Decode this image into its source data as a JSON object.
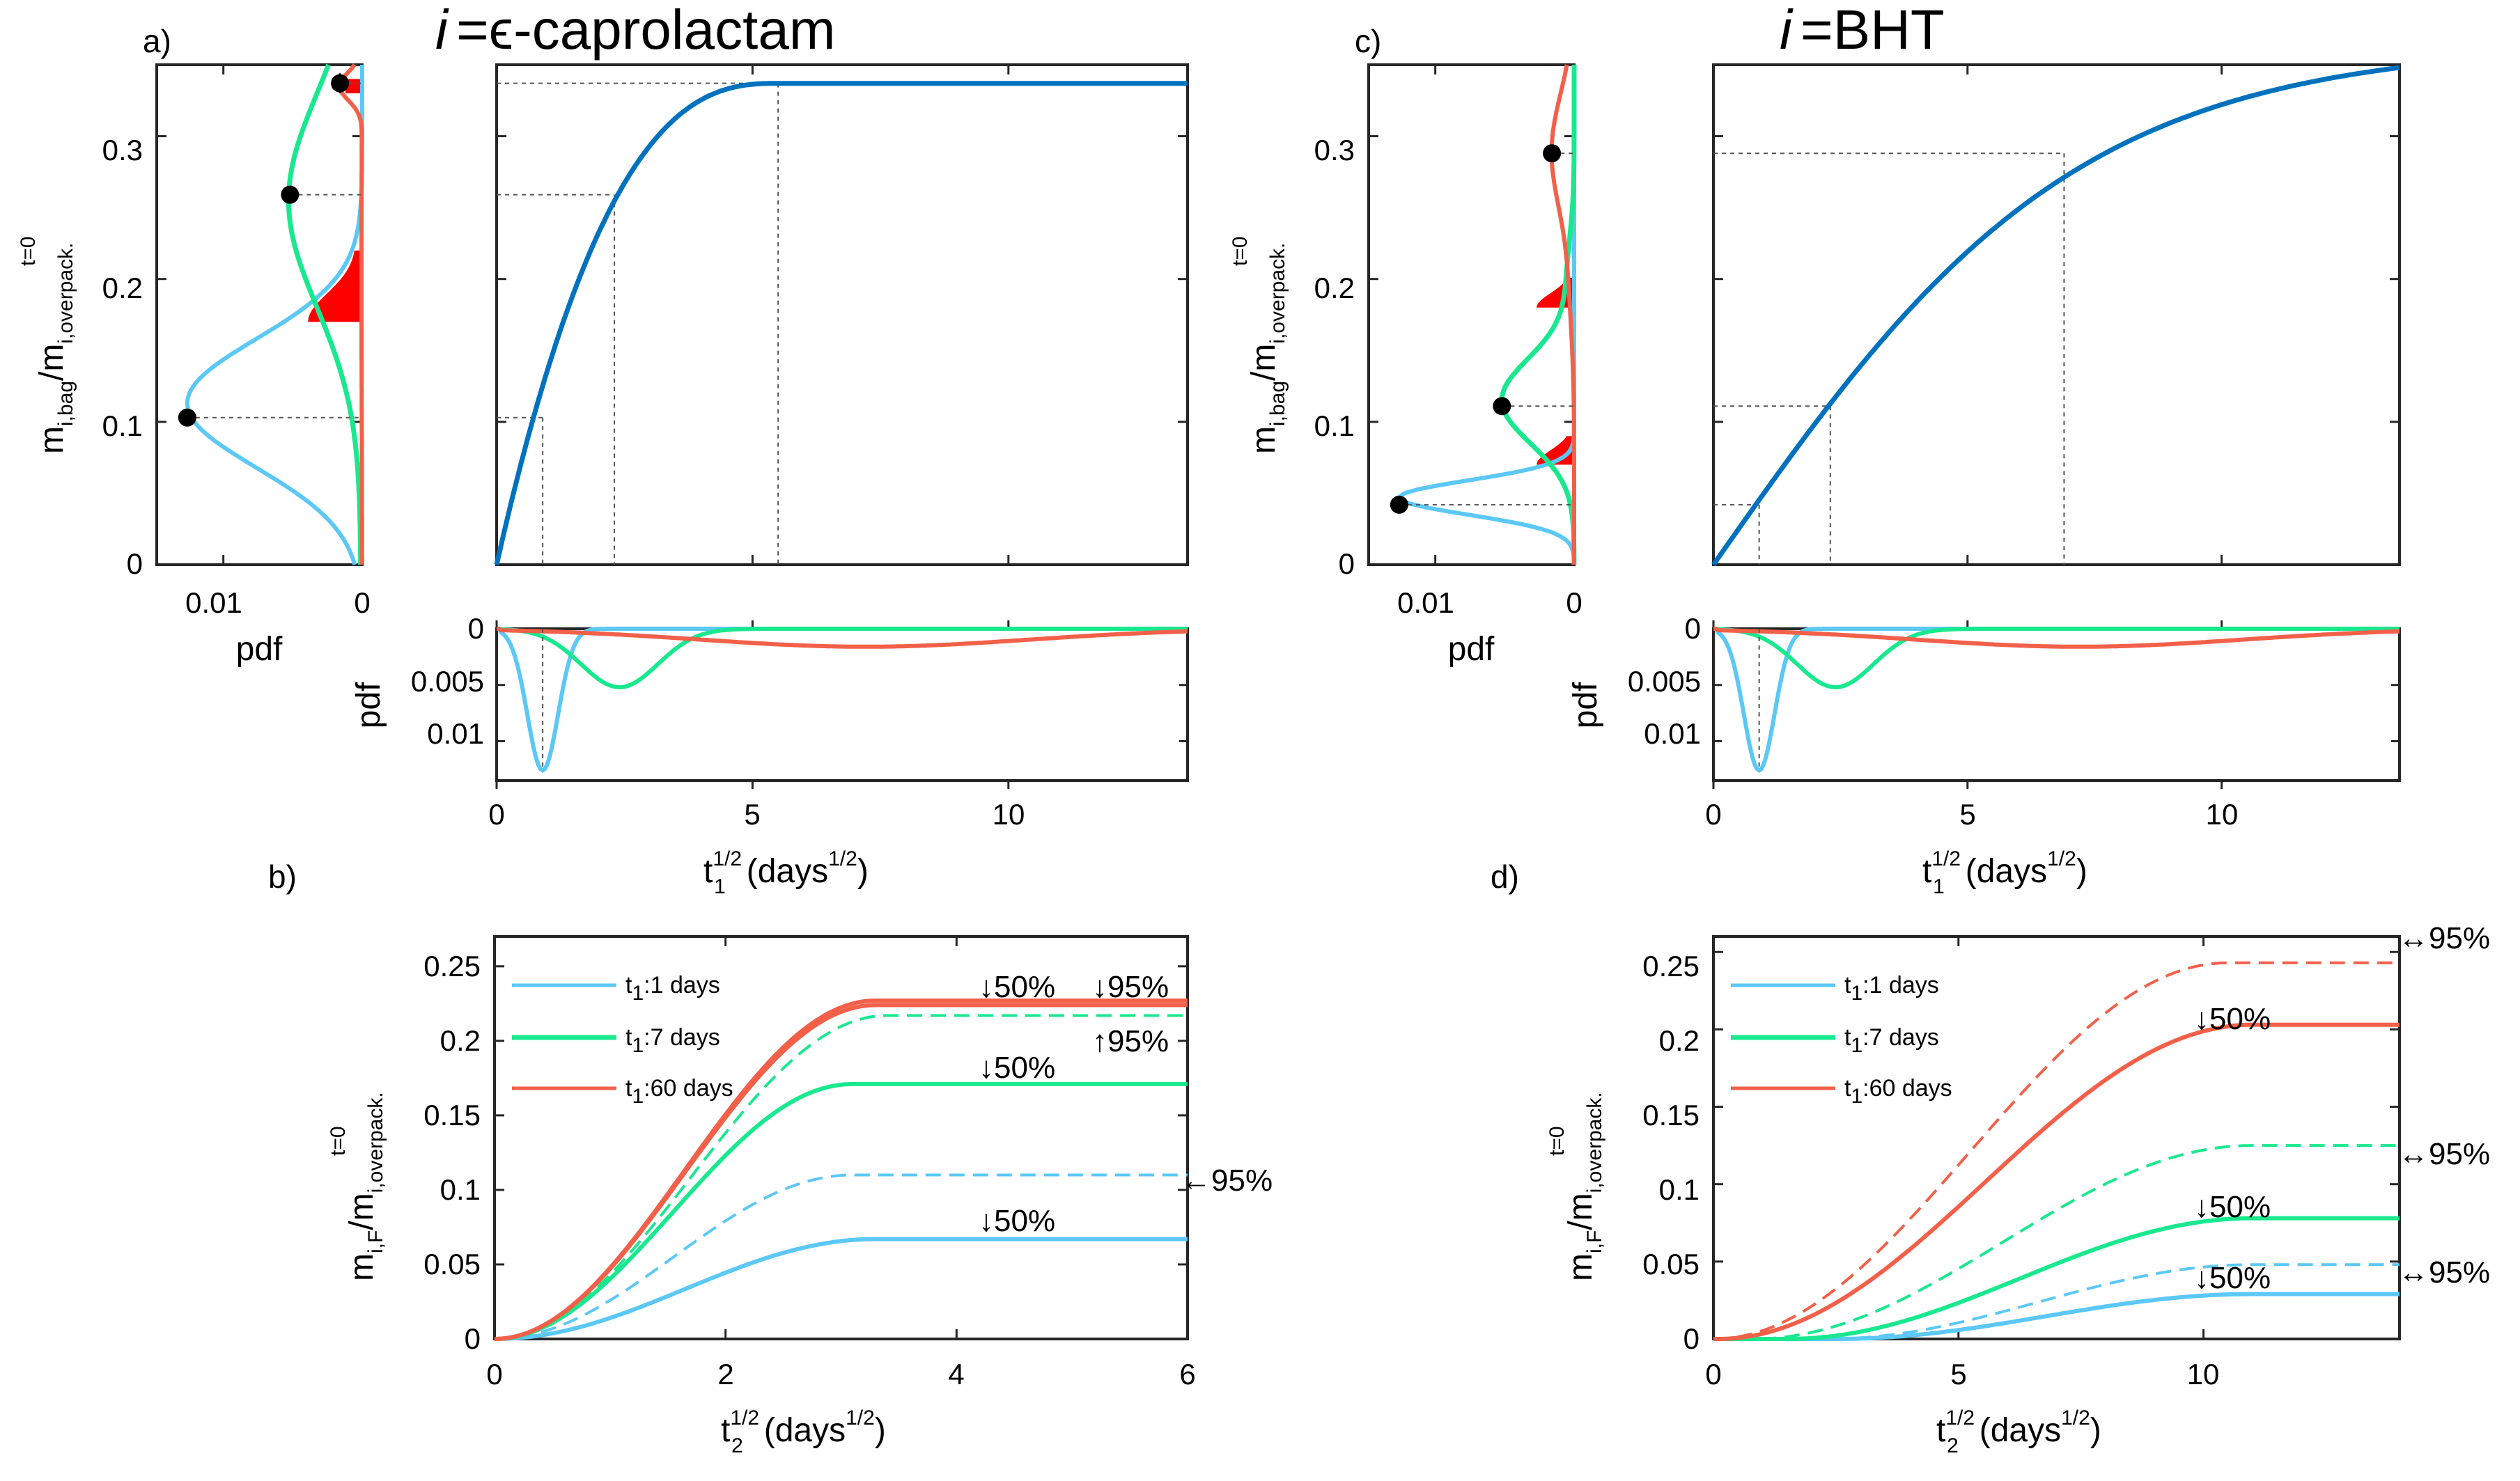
{
  "chart_data": [
    {
      "id": "a_pdf",
      "panel_label": "a)",
      "type": "line",
      "xlabel": "pdf",
      "ylabel": "m_i,bag/m_i,overpack^t=0",
      "xticks": [
        "0.01",
        "0"
      ],
      "yticks": [
        "0",
        "0.1",
        "0.2",
        "0.3"
      ],
      "xlim": [
        0.0148,
        0
      ],
      "ylim": [
        0,
        0.35
      ],
      "series": [
        {
          "name": "t1:1 days",
          "color": "#5bc8f5",
          "peak_pdf": 0.0126,
          "peak_y": 0.11,
          "spread": 0.055,
          "upper_y": 0.17,
          "dot": [
            0.0126,
            0.103
          ]
        },
        {
          "name": "t1:7 days",
          "color": "#19e88f",
          "peak_pdf": 0.0052,
          "peak_y": 0.258,
          "spread": 0.08,
          "dot": [
            0.0052,
            0.259
          ]
        },
        {
          "name": "t1:60 days",
          "color": "#f2604a",
          "peak_pdf": 0.0016,
          "peak_y": 0.335,
          "dot": [
            0.0016,
            0.337
          ]
        }
      ]
    },
    {
      "id": "a_curve",
      "title_prefix": "i",
      "title_rest": "=ϵ-caprolactam",
      "type": "line",
      "ylim": [
        0,
        0.35
      ],
      "xlim": [
        0,
        13.5
      ],
      "color": "#0072bd",
      "saturation": 0.337,
      "sat_x": 5.5,
      "guides": [
        {
          "x": 0.9,
          "y": 0.103
        },
        {
          "x": 2.3,
          "y": 0.259
        },
        {
          "x": 5.5,
          "y": 0.337
        }
      ]
    },
    {
      "id": "a_timepdf",
      "type": "line",
      "xlabel": "t_1^1/2 (days^1/2)",
      "ylabel": "pdf",
      "xticks": [
        "0",
        "5",
        "10"
      ],
      "yticks": [
        "0",
        "0.005",
        "0.01"
      ],
      "xlim": [
        0,
        13.5
      ],
      "ylim": [
        0,
        0.0135
      ],
      "series": [
        {
          "name": "t1:1 days",
          "mu": 0.9,
          "sigma": 0.3,
          "peak": 0.0126
        },
        {
          "name": "t1:7 days",
          "mu": 2.4,
          "sigma": 0.75,
          "peak": 0.0052
        },
        {
          "name": "t1:60 days",
          "mu": 7.2,
          "sigma": 3.2,
          "peak": 0.0016
        }
      ]
    },
    {
      "id": "b_release",
      "panel_label": "b)",
      "type": "line",
      "xlabel": "t_2^1/2 (days^1/2)",
      "ylabel": "m_i,F/m_i,overpack^t=0",
      "xticks": [
        "0",
        "2",
        "4",
        "6"
      ],
      "yticks": [
        "0",
        "0.05",
        "0.1",
        "0.15",
        "0.2",
        "0.25"
      ],
      "xlim": [
        0,
        6
      ],
      "ylim": [
        0,
        0.27
      ],
      "legend": [
        "t1:1 days",
        "t1:7 days",
        "t1:60 days"
      ],
      "series": [
        {
          "name": "t1:1 days 50%",
          "style": "solid",
          "color": "#5bc8f5",
          "final": 0.067,
          "xs": 3.3
        },
        {
          "name": "t1:1 days 95%",
          "style": "dashed",
          "color": "#5bc8f5",
          "final": 0.11,
          "xs": 3.1
        },
        {
          "name": "t1:7 days 50%",
          "style": "solid",
          "color": "#19e88f",
          "final": 0.171,
          "xs": 3.1
        },
        {
          "name": "t1:7 days 95%",
          "style": "dashed",
          "color": "#19e88f",
          "final": 0.217,
          "xs": 3.4
        },
        {
          "name": "t1:60 days 50%",
          "style": "solid",
          "color": "#f2604a",
          "final": 0.224,
          "xs": 3.3
        },
        {
          "name": "t1:60 days 95%",
          "style": "solid",
          "color": "#f2604a",
          "final": 0.227,
          "xs": 3.3
        }
      ],
      "annotations": [
        "↓50%",
        "↓95%",
        "↑95%",
        "↓50%",
        "←95%",
        "↓50%"
      ]
    },
    {
      "id": "c_pdf",
      "panel_label": "c)",
      "type": "line",
      "xlabel": "pdf",
      "ylabel": "m_i,bag/m_i,overpack^t=0",
      "xticks": [
        "0.01",
        "0"
      ],
      "yticks": [
        "0",
        "0.1",
        "0.2",
        "0.3"
      ],
      "xlim": [
        0.0148,
        0
      ],
      "ylim": [
        0,
        0.35
      ],
      "series": [
        {
          "name": "t1:1 days",
          "color": "#5bc8f5",
          "peak_pdf": 0.0126,
          "peak_y": 0.047,
          "dot": [
            0.0126,
            0.042
          ]
        },
        {
          "name": "t1:7 days",
          "color": "#19e88f",
          "peak_pdf": 0.0052,
          "peak_y": 0.12,
          "dot": [
            0.0052,
            0.111
          ]
        },
        {
          "name": "t1:60 days",
          "color": "#f2604a",
          "peak_pdf": 0.0016,
          "peak_y": 0.29,
          "dot": [
            0.0016,
            0.288
          ]
        }
      ]
    },
    {
      "id": "c_curve",
      "title_prefix": "i",
      "title_rest": "=BHT",
      "type": "line",
      "ylim": [
        0,
        0.35
      ],
      "xlim": [
        0,
        13.5
      ],
      "color": "#0072bd",
      "saturation": 0.348,
      "sat_x": 10.8,
      "guides": [
        {
          "x": 0.9,
          "y": 0.042
        },
        {
          "x": 2.3,
          "y": 0.111
        },
        {
          "x": 6.9,
          "y": 0.288
        }
      ]
    },
    {
      "id": "c_timepdf",
      "type": "line",
      "xlabel": "t_1^1/2 (days^1/2)",
      "ylabel": "pdf",
      "xticks": [
        "0",
        "5",
        "10"
      ],
      "yticks": [
        "0",
        "0.005",
        "0.01"
      ],
      "xlim": [
        0,
        13.5
      ],
      "ylim": [
        0,
        0.0135
      ]
    },
    {
      "id": "d_release",
      "panel_label": "d)",
      "type": "line",
      "xlabel": "t_2^1/2 (days^1/2)",
      "ylabel": "m_i,F/m_i,overpack^t=0",
      "xticks": [
        "0",
        "5",
        "10"
      ],
      "yticks": [
        "0",
        "0.05",
        "0.1",
        "0.15",
        "0.2",
        "0.25"
      ],
      "xlim": [
        0,
        14
      ],
      "ylim": [
        0,
        0.26
      ],
      "legend": [
        "t1:1 days",
        "t1:7 days",
        "t1:60 days"
      ],
      "series": [
        {
          "name": "t1:1 days 50%",
          "style": "solid",
          "color": "#5bc8f5",
          "final": 0.029,
          "x0": 2.5,
          "xs": 11
        },
        {
          "name": "t1:1 days 95%",
          "style": "dashed",
          "color": "#5bc8f5",
          "final": 0.048,
          "x0": 2.3,
          "xs": 11
        },
        {
          "name": "t1:7 days 50%",
          "style": "solid",
          "color": "#19e88f",
          "final": 0.078,
          "x0": 1.5,
          "xs": 11
        },
        {
          "name": "t1:7 days 95%",
          "style": "dashed",
          "color": "#19e88f",
          "final": 0.125,
          "x0": 0.8,
          "xs": 11
        },
        {
          "name": "t1:60 days 50%",
          "style": "solid",
          "color": "#f2604a",
          "final": 0.203,
          "x0": 0.1,
          "xs": 11
        },
        {
          "name": "t1:60 days 95%",
          "style": "dashed",
          "color": "#f2604a",
          "final": 0.243,
          "x0": 0,
          "xs": 10.5
        }
      ],
      "annotations": [
        "↔95%",
        "↓50%",
        "↔95%",
        "↓50%",
        "↔95%",
        "↓50%"
      ]
    }
  ],
  "labels": {
    "pdf_tick_001": "0.01",
    "pdf_tick_0": "0",
    "pdf_xlabel": "pdf",
    "t1_xlabel": "t",
    "t2_xlabel": "t",
    "days_unit": "(days",
    "legend_t1": "t",
    "legend_1": ":1 days",
    "legend_7": ":7 days",
    "legend_60": ":60 days",
    "arrow50": "↓50%",
    "arrow95_down": "↓95%",
    "arrow95_up": "↑95%",
    "arrow95_left": "←95%"
  }
}
